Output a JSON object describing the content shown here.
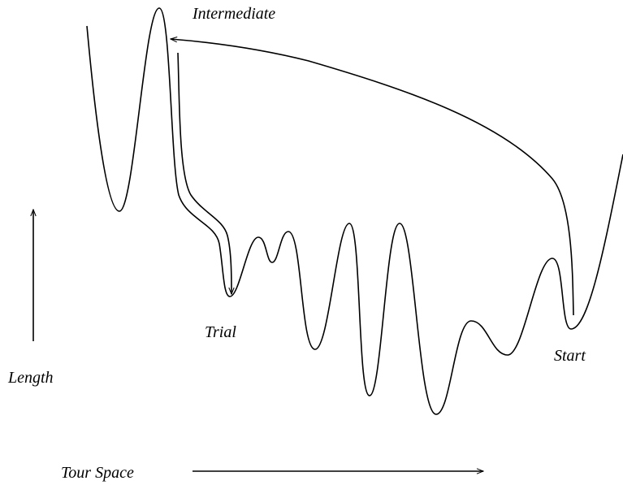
{
  "labels": {
    "intermediate": "Intermediate",
    "trial": "Trial",
    "start": "Start",
    "y_axis": "Length",
    "x_axis": "Tour Space"
  }
}
